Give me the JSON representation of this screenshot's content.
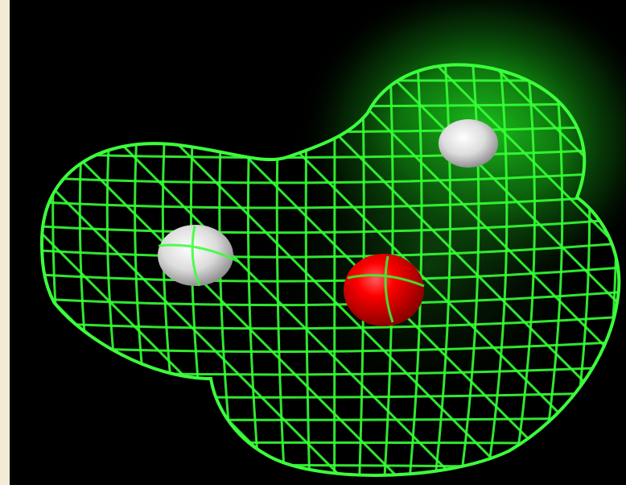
{
  "colors": {
    "background": "#000000",
    "side_strip": "#f2ecd6",
    "mesh": "#33ff33",
    "glow": "#22c922",
    "oxygen_atom": "#ff0000",
    "hydrogen_atom": "#e8e8e8"
  },
  "scene": {
    "subject": "water-molecule-electron-density-wireframe",
    "atoms": [
      {
        "element": "hydrogen",
        "color_key": "hydrogen_atom"
      },
      {
        "element": "oxygen",
        "color_key": "oxygen_atom"
      },
      {
        "element": "hydrogen",
        "color_key": "hydrogen_atom"
      }
    ]
  }
}
